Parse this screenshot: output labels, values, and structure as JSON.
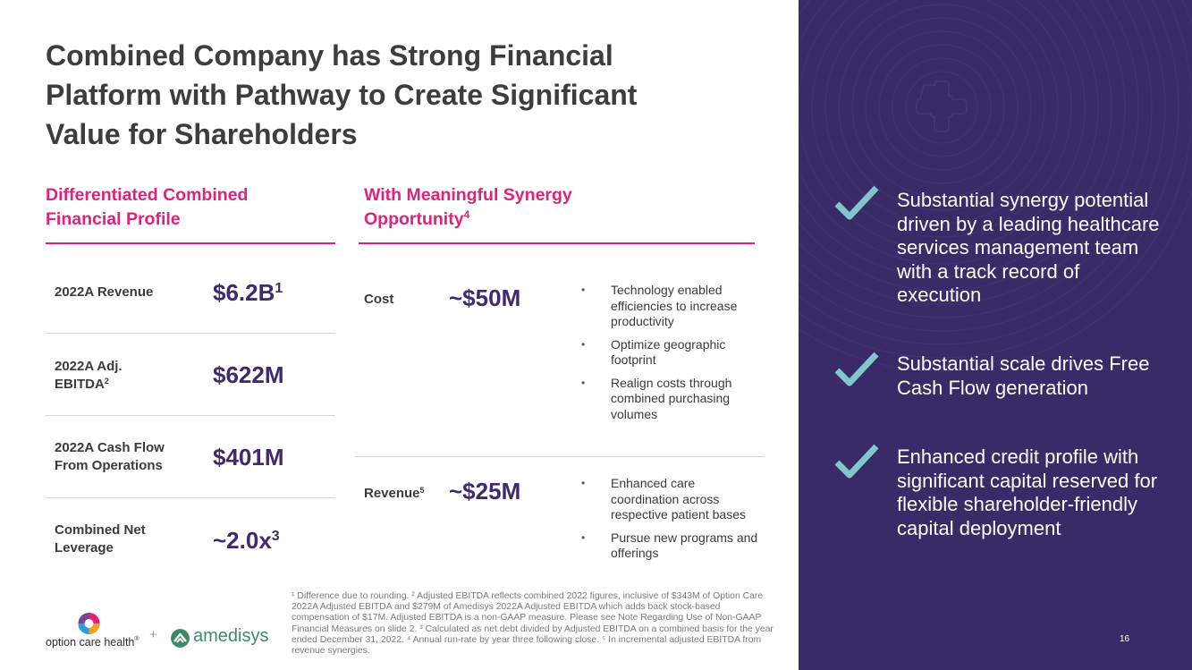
{
  "title": "Combined Company has Strong Financial Platform with Pathway to Create Significant Value for Shareholders",
  "left_section": {
    "heading": "Differentiated Combined Financial Profile",
    "metrics": [
      {
        "label": "2022A Revenue",
        "label_sup": "",
        "value": "$6.2B",
        "value_sup": "1"
      },
      {
        "label": "2022A Adj. EBITDA",
        "label_sup": "2",
        "value": "$622M",
        "value_sup": ""
      },
      {
        "label": "2022A Cash Flow From Operations",
        "label_sup": "",
        "value": "$401M",
        "value_sup": ""
      },
      {
        "label": "Combined Net Leverage",
        "label_sup": "",
        "value": "~2.0x",
        "value_sup": "3"
      }
    ]
  },
  "right_section": {
    "heading": "With Meaningful Synergy Opportunity",
    "heading_sup": "4",
    "synergies": [
      {
        "label": "Cost",
        "label_sup": "",
        "value": "~$50M",
        "bullets": [
          "Technology enabled efficiencies to increase productivity",
          "Optimize geographic footprint",
          "Realign costs through combined purchasing volumes"
        ]
      },
      {
        "label": "Revenue",
        "label_sup": "5",
        "value": "~$25M",
        "bullets": [
          "Enhanced care coordination across respective patient bases",
          "Pursue new programs and offerings"
        ]
      }
    ]
  },
  "bullet_glyph": "•",
  "footnote": "¹ Difference due to rounding. ² Adjusted EBITDA reflects combined 2022 figures, inclusive of $343M of Option Care 2022A Adjusted EBITDA and $279M of Amedisys 2022A Adjusted EBITDA which adds back stock-based compensation of $17M. Adjusted EBITDA is a non-GAAP measure. Please see Note Regarding Use of Non-GAAP Financial Measures on slide 2. ³ Calculated as net debt divided by Adjusted EBITDA on a combined basis for the year ended December 31, 2022. ⁴ Annual run-rate by year three following close. ⁵ In incremental adjusted EBITDA from revenue synergies.",
  "logos": {
    "option_care": "option care health",
    "option_care_mark": "®",
    "plus": "+",
    "amedisys": "amedisys"
  },
  "highlights": [
    "Substantial synergy potential driven by a leading healthcare services management team with a track record of execution",
    "Substantial scale drives Free Cash Flow generation",
    "Enhanced credit profile with significant capital reserved for flexible shareholder-friendly capital deployment"
  ],
  "page_number": "16",
  "colors": {
    "accent_pink": "#e0227c",
    "value_purple": "#3e2a6e",
    "panel_purple": "#3b2a68",
    "check_teal": "#7fc7c9",
    "amedisys_green": "#3d8b63"
  }
}
